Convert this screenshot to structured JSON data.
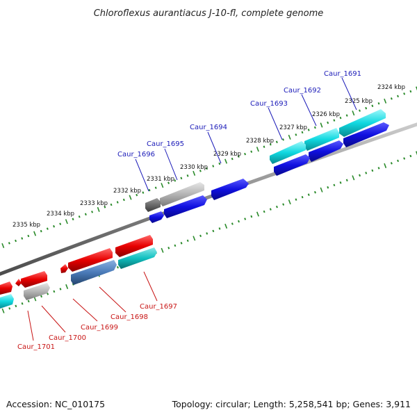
{
  "title": "Chloroflexus aurantiacus J-10-fl, complete genome",
  "footer": {
    "accession": "Accession: NC_010175",
    "stats": "Topology: circular; Length: 5,258,541 bp; Genes: 3,911"
  },
  "ticks": [
    "2324 kbp",
    "2325 kbp",
    "2326 kbp",
    "2327 kbp",
    "2328 kbp",
    "2329 kbp",
    "2330 kbp",
    "2331 kbp",
    "2332 kbp",
    "2333 kbp",
    "2334 kbp",
    "2335 kbp"
  ],
  "genes_forward": [
    "Caur_1691",
    "Caur_1692",
    "Caur_1693",
    "Caur_1694",
    "Caur_1695",
    "Caur_1696"
  ],
  "genes_reverse": [
    "Caur_1697",
    "Caur_1698",
    "Caur_1699",
    "Caur_1700",
    "Caur_1701"
  ],
  "colors": {
    "backbone": "#888888",
    "tick": "#2a8a2a",
    "forward_label": "#1a1ab8",
    "reverse_label": "#c81414",
    "blue": "#1010e0",
    "cyan": "#10d8e0",
    "gray": "#b4b4b4",
    "dark_gray": "#6a6a6a",
    "red": "#e80000",
    "steel_blue": "#4a7ab8",
    "teal": "#10c0c0"
  }
}
